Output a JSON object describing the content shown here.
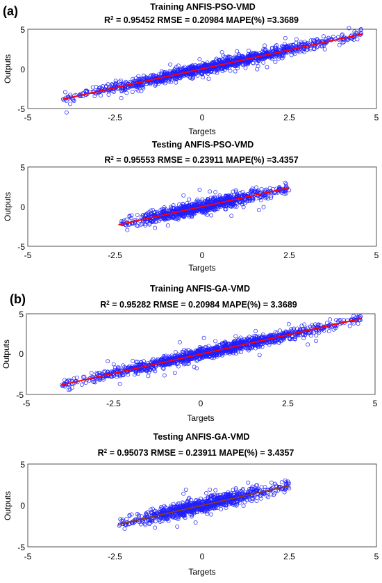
{
  "panels": [
    {
      "label": "(a)"
    },
    {
      "label": "(b)"
    }
  ],
  "chart_data": [
    {
      "type": "scatter",
      "title": "Training ANFIS-PSO-VMD",
      "stats": {
        "r2": "0.95452",
        "rmse": "0.20984",
        "mape": "3.3689"
      },
      "xlabel": "Targets",
      "ylabel": "Outputs",
      "xlim": [
        -5,
        5
      ],
      "ylim": [
        -5,
        5
      ],
      "xticks": [
        "-5",
        "-2.5",
        "0",
        "2.5",
        "5"
      ],
      "yticks": [
        "5",
        "0",
        "-5"
      ],
      "grid": false,
      "data_range": [
        -4.0,
        4.6
      ],
      "fit": {
        "slope": 0.955,
        "intercept": 0.0,
        "x_range": [
          -4.0,
          4.6
        ],
        "color": "#ff0000"
      },
      "marker_color": "#1f1fff"
    },
    {
      "type": "scatter",
      "title": "Testing ANFIS-PSO-VMD",
      "stats": {
        "r2": "0.95553",
        "rmse": "0.23911",
        "mape": "3.4357"
      },
      "xlabel": "Targets",
      "ylabel": "Outputs",
      "xlim": [
        -5,
        5
      ],
      "ylim": [
        -5,
        5
      ],
      "xticks": [
        "-5",
        "-2.5",
        "0",
        "2.5",
        "5"
      ],
      "yticks": [
        "5",
        "0",
        "-5"
      ],
      "grid": false,
      "data_range": [
        -2.4,
        2.5
      ],
      "fit": {
        "slope": 0.955,
        "intercept": 0.0,
        "x_range": [
          -2.4,
          2.5
        ],
        "color": "#ff0000"
      },
      "marker_color": "#1f1fff"
    },
    {
      "type": "scatter",
      "title": "Training ANFIS-GA-VMD",
      "stats": {
        "r2": "0.95282",
        "rmse": "0.20984",
        "mape": "3.3689"
      },
      "xlabel": "Targets",
      "ylabel": "Outputs",
      "xlim": [
        -5,
        5
      ],
      "ylim": [
        -5,
        5
      ],
      "xticks": [
        "-5",
        "-2.5",
        "0",
        "2.5",
        "5"
      ],
      "yticks": [
        "5",
        "0",
        "-5"
      ],
      "grid": false,
      "data_range": [
        -4.0,
        4.6
      ],
      "fit": {
        "slope": 0.955,
        "intercept": 0.0,
        "x_range": [
          -4.0,
          4.6
        ],
        "color": "#ff0000"
      },
      "marker_color": "#1f1fff"
    },
    {
      "type": "scatter",
      "title": "Testing ANFIS-GA-VMD",
      "stats": {
        "r2": "0.95073",
        "rmse": "0.23911",
        "mape": "3.4357"
      },
      "xlabel": "Targets",
      "ylabel": "Outputs",
      "xlim": [
        -5,
        5
      ],
      "ylim": [
        -5,
        5
      ],
      "xticks": [
        "-5",
        "-2.5",
        "0",
        "2.5",
        "5"
      ],
      "yticks": [
        "5",
        "0",
        "-5"
      ],
      "grid": false,
      "data_range": [
        -2.4,
        2.5
      ],
      "fit": {
        "slope": 0.955,
        "intercept": 0.0,
        "x_range": [
          -2.4,
          2.5
        ],
        "color": "#8b3a1a"
      },
      "marker_color": "#1f1fff"
    }
  ]
}
